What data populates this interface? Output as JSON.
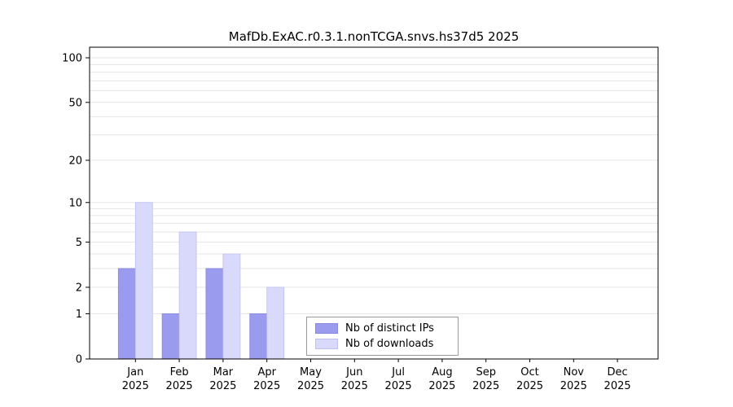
{
  "page": {
    "background": "#ffffff"
  },
  "chart_data": {
    "type": "bar",
    "title": "MafDb.ExAC.r0.3.1.nonTCGA.snvs.hs37d5 2025",
    "categories": [
      "Jan",
      "Feb",
      "Mar",
      "Apr",
      "May",
      "Jun",
      "Jul",
      "Aug",
      "Sep",
      "Oct",
      "Nov",
      "Dec"
    ],
    "x_tick_year": "2025",
    "series": [
      {
        "name": "Nb of distinct IPs",
        "color": "#9a9aee",
        "border": "#8888dd",
        "values": [
          3,
          1,
          3,
          1,
          0,
          0,
          0,
          0,
          0,
          0,
          0,
          0
        ]
      },
      {
        "name": "Nb of downloads",
        "color": "#d9d9fb",
        "border": "#bfbff0",
        "values": [
          10,
          6,
          4,
          2,
          0,
          0,
          0,
          0,
          0,
          0,
          0,
          0
        ]
      }
    ],
    "y_ticks": [
      0,
      1,
      2,
      5,
      10,
      20,
      50,
      100
    ],
    "grid_values": [
      1,
      2,
      3,
      4,
      5,
      6,
      7,
      8,
      9,
      10,
      20,
      30,
      40,
      50,
      60,
      70,
      80,
      90,
      100
    ],
    "scale": "log1p",
    "ylim": [
      0,
      118
    ],
    "xlabel": "",
    "ylabel": "",
    "grid": true,
    "grid_color": "#e5e5e5",
    "legend_position": "inside-bottom-center"
  }
}
